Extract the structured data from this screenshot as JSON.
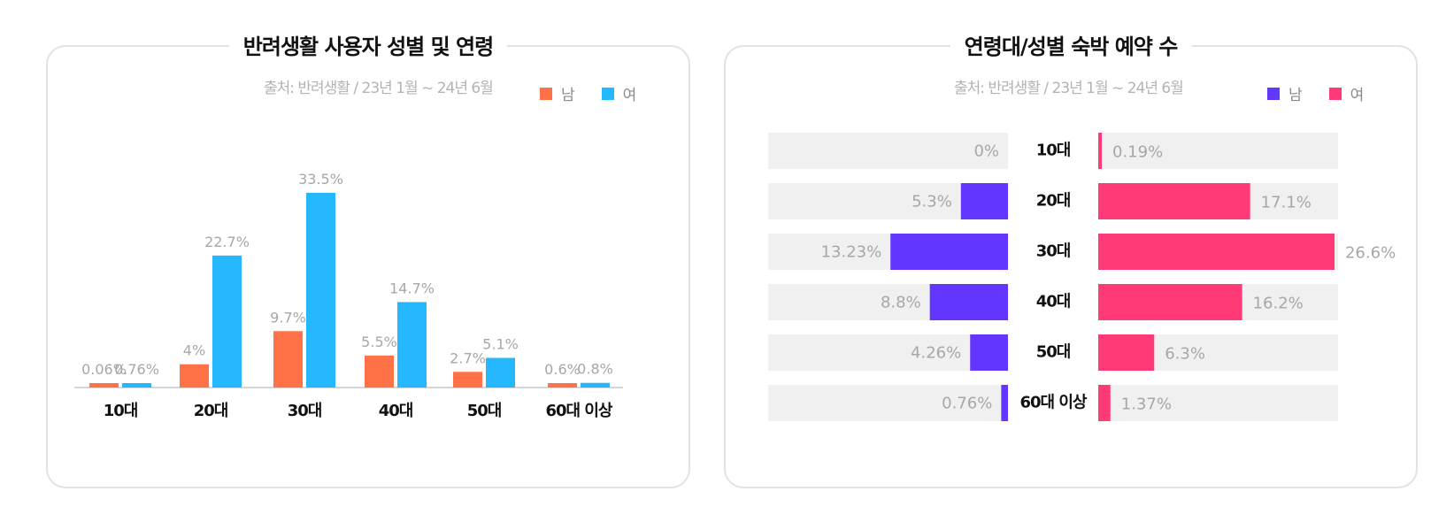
{
  "chart_data": [
    {
      "type": "bar",
      "title": "반려생활 사용자 성별 및 연령",
      "subtitle": "출처: 반려생활 / 23년 1월 ~ 24년 6월",
      "categories": [
        "10대",
        "20대",
        "30대",
        "40대",
        "50대",
        "60대 이상"
      ],
      "series": [
        {
          "name": "남",
          "color": "#ff7247",
          "values": [
            0.06,
            4,
            9.7,
            5.5,
            2.7,
            0.6
          ],
          "labels": [
            "0.06%",
            "4%",
            "9.7%",
            "5.5%",
            "2.7%",
            "0.6%"
          ]
        },
        {
          "name": "여",
          "color": "#26b8ff",
          "values": [
            0.76,
            22.7,
            33.5,
            14.7,
            5.1,
            0.8
          ],
          "labels": [
            "0.76%",
            "22.7%",
            "33.5%",
            "14.7%",
            "5.1%",
            "0.8%"
          ]
        }
      ],
      "ylim": [
        0,
        35
      ],
      "legend_position": "top-right"
    },
    {
      "type": "bar",
      "orientation": "horizontal-butterfly",
      "title": "연령대/성별 숙박 예약 수",
      "subtitle": "출처: 반려생활 / 23년 1월 ~ 24년 6월",
      "categories": [
        "10대",
        "20대",
        "30대",
        "40대",
        "50대",
        "60대 이상"
      ],
      "series": [
        {
          "name": "남",
          "color": "#6236ff",
          "values": [
            0,
            5.3,
            13.23,
            8.8,
            4.26,
            0.76
          ],
          "labels": [
            "0%",
            "5.3%",
            "13.23%",
            "8.8%",
            "4.26%",
            "0.76%"
          ]
        },
        {
          "name": "여",
          "color": "#ff3a77",
          "values": [
            0.19,
            17.1,
            26.6,
            16.2,
            6.3,
            1.37
          ],
          "labels": [
            "0.19%",
            "17.1%",
            "26.6%",
            "16.2%",
            "6.3%",
            "1.37%"
          ]
        }
      ],
      "xlim": [
        0,
        27
      ],
      "track_color": "#f0f0f0",
      "legend_position": "top-right"
    }
  ]
}
